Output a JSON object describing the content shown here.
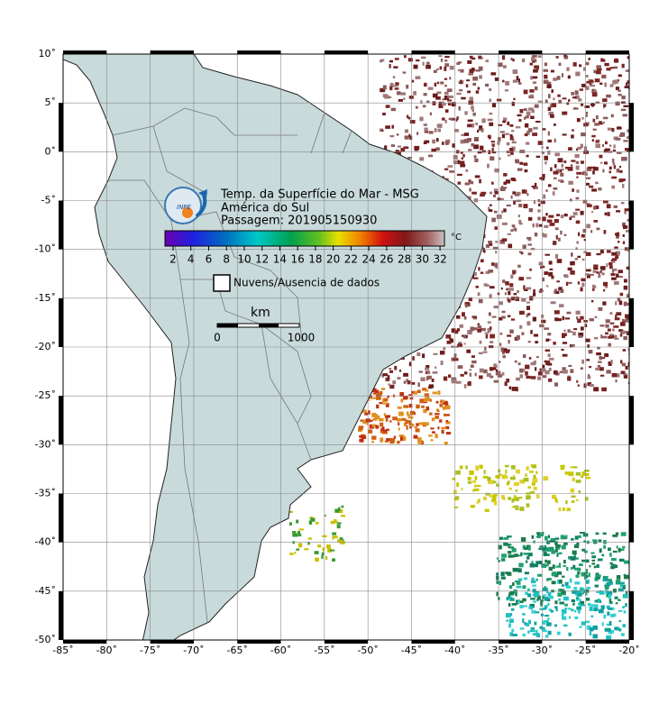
{
  "map": {
    "title_lines": [
      "Temp. da Superfície do Mar - MSG",
      "América do Sul",
      "Passagem: 201905150930"
    ],
    "logo_text": "INPE",
    "colorbar": {
      "ticks": [
        2,
        4,
        6,
        8,
        10,
        12,
        14,
        16,
        18,
        20,
        22,
        24,
        26,
        28,
        30,
        32
      ],
      "unit": "°C"
    },
    "legend": "Nuvens/Ausencia de dados",
    "scale_bar": {
      "unit": "km",
      "labels": [
        "0",
        "1000"
      ]
    },
    "lat_ticks": [
      "10˚",
      "5˚",
      "0˚",
      "-5˚",
      "-10˚",
      "-15˚",
      "-20˚",
      "-25˚",
      "-30˚",
      "-35˚",
      "-40˚",
      "-45˚",
      "-50˚"
    ],
    "lon_ticks": [
      "-85˚",
      "-80˚",
      "-75˚",
      "-70˚",
      "-65˚",
      "-60˚",
      "-55˚",
      "-50˚",
      "-45˚",
      "-40˚",
      "-35˚",
      "-30˚",
      "-25˚",
      "-20˚"
    ]
  }
}
